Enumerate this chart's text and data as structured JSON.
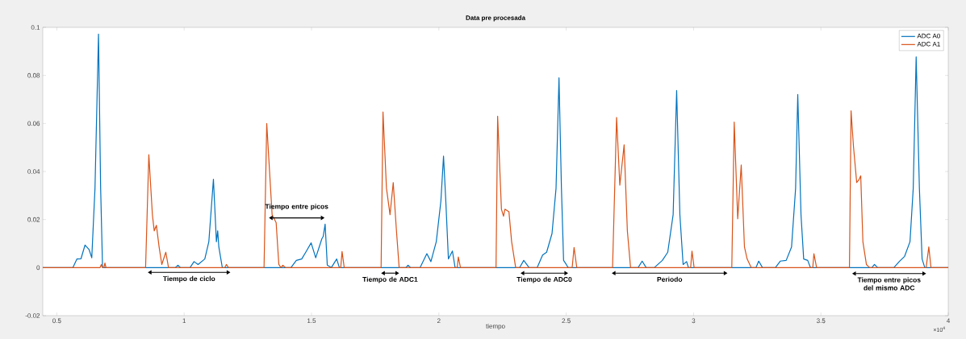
{
  "chart_data": {
    "type": "line",
    "title": "Data pre procesada",
    "xlabel": "tiempo",
    "xlim": [
      0.445,
      4
    ],
    "ylim": [
      -0.02,
      0.1
    ],
    "xticks": [
      0.5,
      1,
      1.5,
      2,
      2.5,
      3,
      3.5,
      4
    ],
    "yticks": [
      -0.02,
      0,
      0.02,
      0.04,
      0.06,
      0.08,
      0.1
    ],
    "legend": "top right",
    "grid": false,
    "series": [
      {
        "name": "ADC A0",
        "color": "#0072bd",
        "x": [
          0.445,
          0.5634,
          0.5793,
          0.5951,
          0.611,
          0.6268,
          0.6374,
          0.65,
          0.6638,
          0.6722,
          0.6797,
          0.965,
          0.9757,
          0.986,
          1.0231,
          1.0389,
          1.0547,
          1.0811,
          1.097,
          1.115,
          1.1267,
          1.1318,
          1.1362,
          1.1499,
          1.4193,
          1.4405,
          1.4616,
          1.4774,
          1.4986,
          1.5166,
          1.5407,
          1.5461,
          1.5535,
          1.562,
          1.5778,
          1.5989,
          1.6095,
          1.87,
          1.879,
          1.8895,
          1.9265,
          1.9529,
          1.9688,
          1.9899,
          2.0079,
          2.0184,
          2.0269,
          2.0375,
          2.0533,
          2.0638,
          2.3174,
          2.3333,
          2.3544,
          2.3862,
          2.4073,
          2.4231,
          2.4443,
          2.4601,
          2.4717,
          2.4813,
          2.4897,
          2.5003,
          2.5076,
          2.7823,
          2.7981,
          2.814,
          2.8458,
          2.8775,
          2.8987,
          2.9198,
          2.9336,
          2.9463,
          2.959,
          2.9726,
          2.98,
          3.2452,
          3.2558,
          3.2706,
          3.3213,
          3.3403,
          3.3636,
          3.3847,
          3.4006,
          3.4091,
          3.4218,
          3.4323,
          3.4481,
          3.4587,
          3.7,
          3.7102,
          3.7229,
          3.7863,
          3.8074,
          3.8286,
          3.8497,
          3.8624,
          3.8739,
          3.8866,
          3.8972,
          3.9078,
          4
        ],
        "values": [
          0,
          0,
          0.0036,
          0.0037,
          0.0094,
          0.0075,
          0.0041,
          0.033,
          0.0972,
          0.033,
          0,
          0,
          0.001,
          0,
          0,
          0.0025,
          0.0013,
          0.0036,
          0.0108,
          0.0368,
          0.0108,
          0.0153,
          0.0086,
          0,
          0,
          0.003,
          0.0036,
          0.0064,
          0.0103,
          0.0041,
          0.012,
          0.013,
          0.0181,
          0.001,
          0,
          0.0036,
          0,
          0,
          0.001,
          0,
          0,
          0.0058,
          0.0025,
          0.0108,
          0.0276,
          0.0464,
          0.0287,
          0.0036,
          0.0069,
          0,
          0,
          0.003,
          0,
          0,
          0.0052,
          0.0064,
          0.0142,
          0.033,
          0.079,
          0.033,
          0.003,
          0.0013,
          0,
          0,
          0.0027,
          0,
          0,
          0.003,
          0.0064,
          0.022,
          0.0737,
          0.022,
          0.0013,
          0.0025,
          0,
          0,
          0.0027,
          0,
          0,
          0.0027,
          0.003,
          0.0086,
          0.033,
          0.0721,
          0.022,
          0.0036,
          0.003,
          0,
          0,
          0.0013,
          0,
          0,
          0.0025,
          0.0047,
          0.0108,
          0.033,
          0.0877,
          0.033,
          0.0036,
          0,
          0
        ]
      },
      {
        "name": "ADC A1",
        "color": "#d95319",
        "x": [
          0.445,
          0.67,
          0.675,
          0.6797,
          0.685,
          0.689,
          0.693,
          0.8487,
          0.8614,
          0.8754,
          0.8826,
          0.8911,
          0.9017,
          0.9123,
          0.9281,
          0.9387,
          1.16,
          1.1657,
          1.1742,
          1.3137,
          1.3243,
          1.3454,
          1.3612,
          1.3718,
          1.38,
          1.3876,
          1.3982,
          1.6148,
          1.62,
          1.6285,
          1.7733,
          1.7807,
          1.7944,
          1.8083,
          1.8209,
          1.8336,
          1.8441,
          2.072,
          2.0765,
          2.085,
          2.2245,
          2.2308,
          2.2457,
          2.254,
          2.2594,
          2.2752,
          2.2857,
          2.3016,
          2.5234,
          2.5309,
          2.5415,
          2.682,
          2.6978,
          2.7105,
          2.7274,
          2.7401,
          2.7527,
          2.9885,
          2.9938,
          3.0022,
          3.1501,
          3.1596,
          3.1733,
          3.1871,
          3.1998,
          3.2103,
          3.2262,
          3.468,
          3.4725,
          3.483,
          3.612,
          3.6183,
          3.6278,
          3.6405,
          3.6489,
          3.6563,
          3.6648,
          3.6786,
          3.6912,
          3.913,
          3.9236,
          3.9321,
          4
        ],
        "values": [
          0,
          0,
          0.0013,
          0,
          0,
          0.0019,
          0,
          0,
          0.047,
          0.022,
          0.0153,
          0.0176,
          0.0086,
          0.0013,
          0.0064,
          0,
          0,
          0.0013,
          0,
          0,
          0.06,
          0.022,
          0.0187,
          0.0013,
          0,
          0.001,
          0,
          0,
          0.0067,
          0,
          0,
          0.0648,
          0.033,
          0.022,
          0.0354,
          0.0153,
          0,
          0,
          0.0044,
          0,
          0,
          0.063,
          0.0243,
          0.0214,
          0.0243,
          0.0232,
          0.0108,
          0,
          0,
          0.0084,
          0,
          0,
          0.0625,
          0.0343,
          0.0511,
          0.0153,
          0,
          0,
          0.0069,
          0,
          0,
          0.0606,
          0.0203,
          0.0427,
          0.0086,
          0.0036,
          0,
          0,
          0.0058,
          0,
          0,
          0.0653,
          0.0505,
          0.0354,
          0.0365,
          0.0382,
          0.0108,
          0.0013,
          0,
          0,
          0.0086,
          0,
          0
        ]
      },
      {
        "type": "line",
        "color": "#000000",
        "marker": "triangle",
        "x": [
          0.8573,
          1.1816
        ],
        "values": [
          -0.002,
          -0.002
        ]
      },
      {
        "type": "line",
        "color": "#000000",
        "marker": "triangle",
        "x": [
          1.3327,
          1.5514
        ],
        "values": [
          0.0207,
          0.0207
        ]
      },
      {
        "type": "line",
        "color": "#000000",
        "marker": "triangle",
        "x": [
          1.7733,
          1.8441
        ],
        "values": [
          -0.0023,
          -0.0023
        ]
      },
      {
        "type": "line",
        "color": "#000000",
        "marker": "triangle",
        "x": [
          2.3206,
          2.5076
        ],
        "values": [
          -0.0023,
          -0.0023
        ]
      },
      {
        "type": "line",
        "color": "#000000",
        "marker": "triangle",
        "x": [
          2.6788,
          3.1332
        ],
        "values": [
          -0.0023,
          -0.0023
        ]
      },
      {
        "type": "line",
        "color": "#000000",
        "marker": "triangle",
        "x": [
          3.6225,
          3.9132
        ],
        "values": [
          -0.0025,
          -0.0025
        ]
      }
    ],
    "annotations": [
      "Tiempo de ciclo",
      "Tiempo entre picos",
      "Tiempo de ADC1",
      "Tiempo de ADC0",
      "Periodo",
      "Tiempo entre picos del mismo ADC",
      "×10$^{4}$"
    ]
  }
}
